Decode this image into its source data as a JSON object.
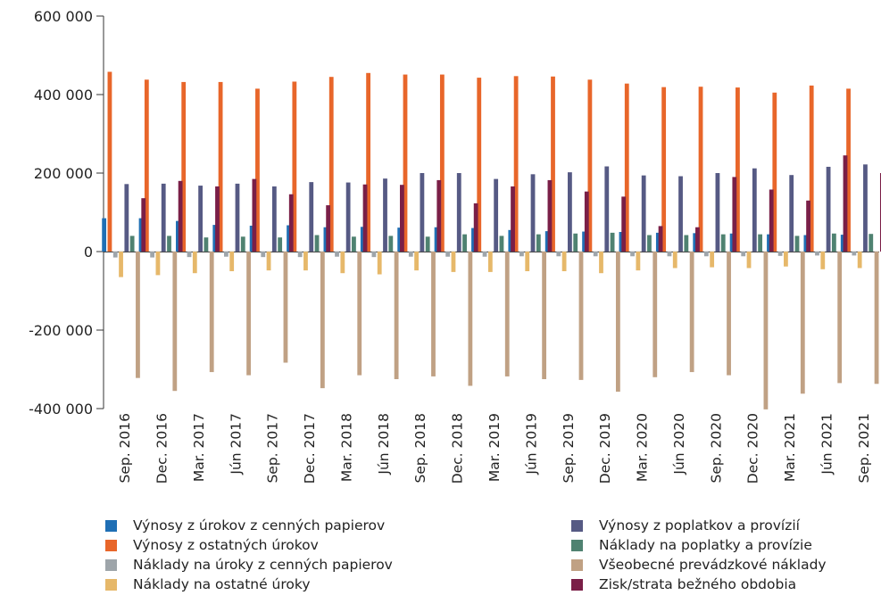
{
  "chart_data": {
    "type": "bar",
    "categories": [
      "Sep. 2016",
      "Dec. 2016",
      "Mar. 2017",
      "Jún 2017",
      "Sep. 2017",
      "Dec. 2017",
      "Mar. 2018",
      "Jún 2018",
      "Sep. 2018",
      "Dec. 2018",
      "Mar. 2019",
      "Jún 2019",
      "Sep. 2019",
      "Dec. 2019",
      "Mar. 2020",
      "Jún 2020",
      "Sep. 2020",
      "Dec. 2020",
      "Mar. 2021",
      "Jún 2021",
      "Sep. 2021"
    ],
    "yticks": [
      "600 000",
      "400 000",
      "200 000",
      "0",
      "-200 000",
      "-400 000"
    ],
    "ytick_values": [
      600000,
      400000,
      200000,
      0,
      -200000,
      -400000
    ],
    "ylim": [
      -400000,
      600000
    ],
    "legend_position": "bottom",
    "series": [
      {
        "name": "Výnosy z úrokov z cenných papierov",
        "color": "#1f6fb5",
        "values": [
          85000,
          85000,
          78000,
          68000,
          66000,
          67000,
          62000,
          63000,
          61000,
          62000,
          60000,
          55000,
          52000,
          51000,
          50000,
          48000,
          47000,
          46000,
          44000,
          42000,
          43000
        ]
      },
      {
        "name": "Výnosy z ostatných úrokov",
        "color": "#e8662a",
        "values": [
          458000,
          438000,
          432000,
          432000,
          415000,
          433000,
          445000,
          455000,
          451000,
          451000,
          443000,
          447000,
          446000,
          438000,
          428000,
          419000,
          420000,
          418000,
          405000,
          423000,
          415000
        ]
      },
      {
        "name": "Náklady na úroky z cenných papierov",
        "color": "#9ea5aa",
        "values": [
          -15000,
          -15000,
          -14000,
          -13000,
          -14000,
          -14000,
          -13000,
          -14000,
          -13000,
          -13000,
          -13000,
          -12000,
          -12000,
          -12000,
          -12000,
          -12000,
          -12000,
          -12000,
          -11000,
          -10000,
          -10000
        ]
      },
      {
        "name": "Náklady na ostatné úroky",
        "color": "#e6b86a",
        "values": [
          -65000,
          -60000,
          -55000,
          -50000,
          -48000,
          -48000,
          -55000,
          -58000,
          -48000,
          -52000,
          -52000,
          -50000,
          -50000,
          -55000,
          -48000,
          -42000,
          -40000,
          -42000,
          -38000,
          -45000,
          -42000
        ]
      },
      {
        "name": "Výnosy z poplatkov a provízií",
        "color": "#565a84",
        "values": [
          172000,
          173000,
          168000,
          173000,
          166000,
          177000,
          176000,
          186000,
          200000,
          200000,
          185000,
          197000,
          202000,
          217000,
          194000,
          192000,
          200000,
          212000,
          195000,
          216000,
          222000
        ]
      },
      {
        "name": "Náklady na poplatky a provízie",
        "color": "#4f8271",
        "values": [
          40000,
          40000,
          36000,
          38000,
          36000,
          42000,
          38000,
          40000,
          38000,
          44000,
          40000,
          44000,
          46000,
          48000,
          42000,
          42000,
          44000,
          44000,
          40000,
          46000,
          45000
        ]
      },
      {
        "name": "Všeobecné prevádzkové náklady",
        "color": "#c0a184",
        "values": [
          -322000,
          -355000,
          -307000,
          -315000,
          -283000,
          -348000,
          -315000,
          -325000,
          -318000,
          -342000,
          -318000,
          -325000,
          -327000,
          -357000,
          -320000,
          -307000,
          -315000,
          -402000,
          -362000,
          -335000,
          -337000
        ]
      },
      {
        "name": "Zisk/strata bežného obdobia",
        "color": "#7a1f47",
        "values": [
          136000,
          180000,
          166000,
          185000,
          146000,
          118000,
          171000,
          170000,
          182000,
          123000,
          166000,
          182000,
          153000,
          140000,
          65000,
          62000,
          190000,
          158000,
          130000,
          245000,
          200000
        ]
      }
    ]
  }
}
